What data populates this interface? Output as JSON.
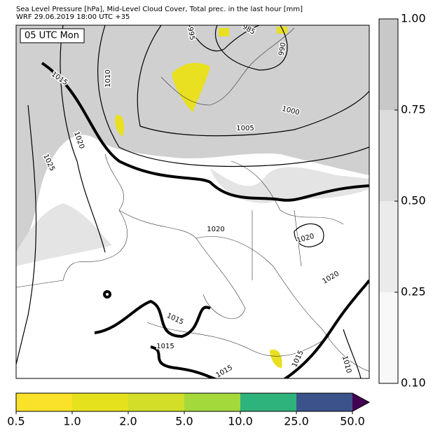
{
  "header": {
    "title": "Sea Level Pressure [hPa], Mid-Level Cloud Cover, Total prec. in the last hour [mm]",
    "subtitle": "WRF 29.06.2019 18:00 UTC +35"
  },
  "map": {
    "time_label": "05 UTC Mon",
    "contour_labels": [
      "1015",
      "1010",
      "995",
      "985",
      "990",
      "1000",
      "1005",
      "1020",
      "1025",
      "1020",
      "1020",
      "1020",
      "1015",
      "1015",
      "1015",
      "1010",
      "1015"
    ]
  },
  "cloud_colorbar": {
    "labels": [
      "1.00",
      "0.75",
      "0.50",
      "0.25",
      "0.10"
    ],
    "colors": [
      "#c8c8c8",
      "#dcdcdc",
      "#ebebeb",
      "#f8f8f8"
    ]
  },
  "precip_colorbar": {
    "labels": [
      "0.5",
      "1.0",
      "2.0",
      "5.0",
      "10.0",
      "25.0",
      "50.0"
    ],
    "colors": [
      "#fbe22a",
      "#e6e11d",
      "#d2de27",
      "#a3d93b",
      "#2eb37c",
      "#3b528b"
    ],
    "extend_color": "#440154"
  }
}
